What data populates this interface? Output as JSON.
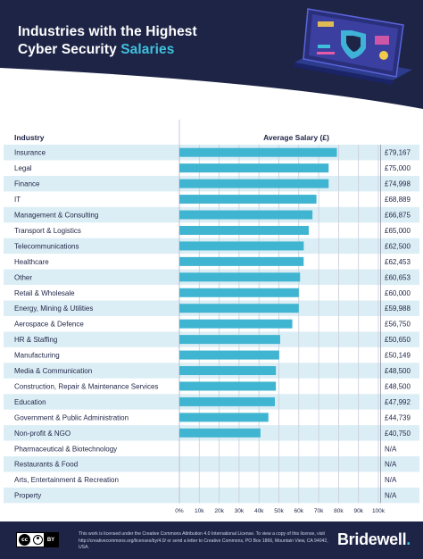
{
  "header": {
    "title_line1": "Industries with the Highest",
    "title_line2_plain": "Cyber Security ",
    "title_line2_highlight": "Salaries"
  },
  "colors": {
    "navy": "#1e2446",
    "bar": "#3fb5d1",
    "row_alt": "#dceef5",
    "accent": "#3fc0dd"
  },
  "chart_data": {
    "type": "bar",
    "orientation": "horizontal",
    "column_headers": {
      "industry": "Industry",
      "salary": "Average Salary (£)"
    },
    "categories": [
      "Insurance",
      "Legal",
      "Finance",
      "IT",
      "Management & Consulting",
      "Transport & Logistics",
      "Telecommunications",
      "Healthcare",
      "Other",
      "Retail & Wholesale",
      "Energy, Mining & Utilities",
      "Aerospace & Defence",
      "HR & Staffing",
      "Manufacturing",
      "Media & Communication",
      "Construction, Repair & Maintenance Services",
      "Education",
      "Government & Public Administration",
      "Non-profit & NGO",
      "Pharmaceutical & Biotechnology",
      "Restaurants & Food",
      "Arts, Entertainment & Recreation",
      "Property"
    ],
    "values": [
      79167,
      75000,
      74998,
      68889,
      66875,
      65000,
      62500,
      62453,
      60653,
      60000,
      59988,
      56750,
      50650,
      50149,
      48500,
      48500,
      47992,
      44739,
      40750,
      null,
      null,
      null,
      null
    ],
    "value_labels": [
      "£79,167",
      "£75,000",
      "£74,998",
      "£68,889",
      "£66,875",
      "£65,000",
      "£62,500",
      "£62,453",
      "£60,653",
      "£60,000",
      "£59,988",
      "£56,750",
      "£50,650",
      "£50,149",
      "£48,500",
      "£48,500",
      "£47,992",
      "£44,739",
      "£40,750",
      "N/A",
      "N/A",
      "N/A",
      "N/A"
    ],
    "xlim": [
      0,
      100000
    ],
    "x_ticks": [
      "0%",
      "10k",
      "20k",
      "30k",
      "40k",
      "50k",
      "60k",
      "70k",
      "80k",
      "90k",
      "100k"
    ],
    "grid": true
  },
  "footer": {
    "cc_label": "cc",
    "by_label": "BY",
    "license_text": "This work is licensed under the Creative Commons Attribution 4.0 International License. To view a copy of this license, visit http://creativecommons.org/licenses/by/4.0/ or send a letter to Creative Commons, PO Box 1866, Mountain View, CA 94042, USA.",
    "brand": "Bridewell"
  }
}
